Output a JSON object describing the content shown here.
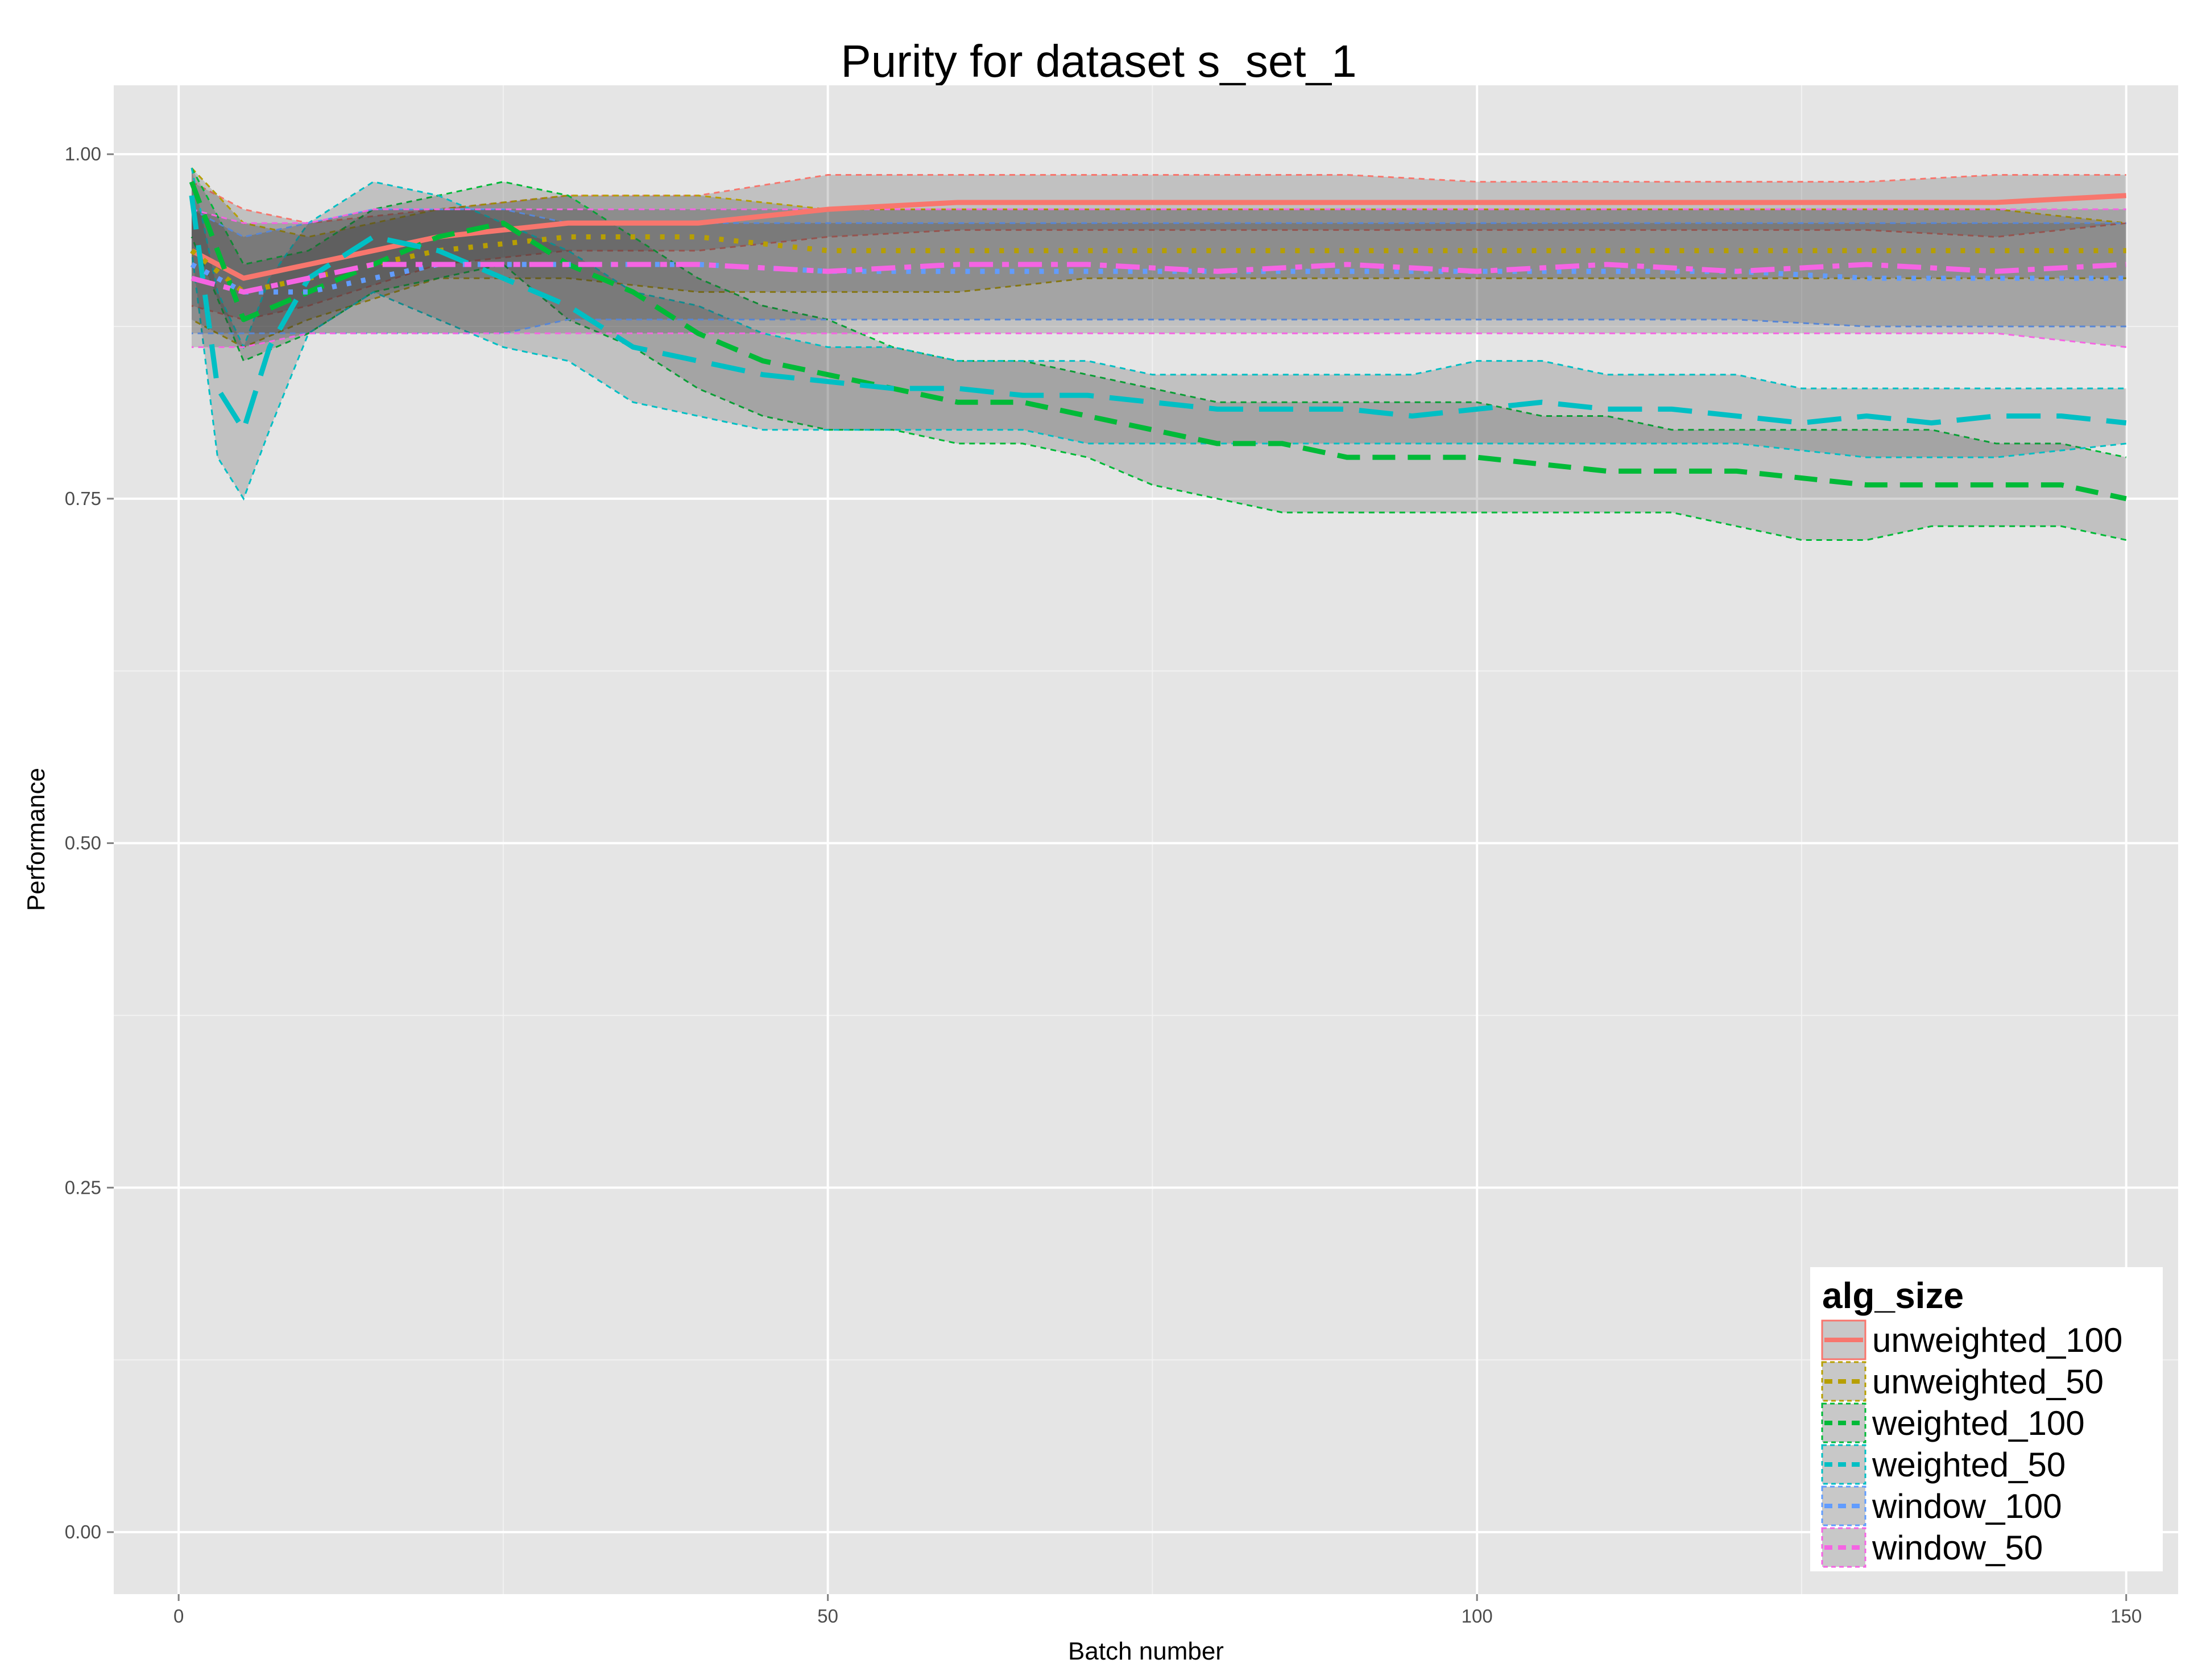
{
  "chart_data": {
    "type": "line",
    "title": "Purity for dataset s_set_1",
    "xlabel": "Batch number",
    "ylabel": "Performance",
    "xlim": [
      -5,
      154
    ],
    "ylim": [
      -0.045,
      1.05
    ],
    "x_ticks": [
      0,
      50,
      100,
      150
    ],
    "x_tick_labels": [
      "0",
      "50",
      "100",
      "150"
    ],
    "y_ticks": [
      0,
      0.25,
      0.5,
      0.75,
      1.0
    ],
    "y_tick_labels": [
      "0.00",
      "0.25",
      "0.50",
      "0.75",
      "1.00"
    ],
    "grid": true,
    "legend": {
      "title": "alg_size",
      "position": "bottom-right"
    },
    "series": [
      {
        "name": "unweighted_100",
        "color": "#F8766D",
        "dash": "solid",
        "x": [
          1,
          5,
          10,
          20,
          30,
          40,
          50,
          60,
          70,
          80,
          90,
          100,
          110,
          120,
          130,
          140,
          150
        ],
        "y": [
          0.93,
          0.91,
          0.92,
          0.94,
          0.95,
          0.95,
          0.96,
          0.965,
          0.965,
          0.965,
          0.965,
          0.965,
          0.965,
          0.965,
          0.965,
          0.965,
          0.97
        ],
        "lower": [
          0.89,
          0.88,
          0.89,
          0.92,
          0.93,
          0.93,
          0.94,
          0.945,
          0.945,
          0.945,
          0.945,
          0.945,
          0.945,
          0.945,
          0.945,
          0.94,
          0.95
        ],
        "upper": [
          0.98,
          0.96,
          0.95,
          0.96,
          0.97,
          0.97,
          0.985,
          0.985,
          0.985,
          0.985,
          0.985,
          0.98,
          0.98,
          0.98,
          0.98,
          0.985,
          0.985
        ]
      },
      {
        "name": "unweighted_50",
        "color": "#B79F00",
        "dash": "dotted",
        "x": [
          1,
          5,
          10,
          20,
          30,
          40,
          50,
          60,
          70,
          80,
          90,
          100,
          110,
          120,
          130,
          140,
          150
        ],
        "y": [
          0.93,
          0.9,
          0.91,
          0.93,
          0.94,
          0.94,
          0.93,
          0.93,
          0.93,
          0.93,
          0.93,
          0.93,
          0.93,
          0.93,
          0.93,
          0.93,
          0.93
        ],
        "lower": [
          0.88,
          0.86,
          0.88,
          0.91,
          0.91,
          0.9,
          0.9,
          0.9,
          0.91,
          0.91,
          0.91,
          0.91,
          0.91,
          0.91,
          0.91,
          0.91,
          0.91
        ],
        "upper": [
          0.99,
          0.95,
          0.94,
          0.96,
          0.97,
          0.97,
          0.96,
          0.96,
          0.96,
          0.96,
          0.96,
          0.96,
          0.96,
          0.96,
          0.96,
          0.96,
          0.95
        ]
      },
      {
        "name": "weighted_100",
        "color": "#00BA38",
        "dash": "dashed",
        "x": [
          1,
          5,
          10,
          15,
          20,
          25,
          30,
          35,
          40,
          45,
          50,
          55,
          60,
          65,
          70,
          75,
          80,
          85,
          90,
          95,
          100,
          105,
          110,
          115,
          120,
          125,
          130,
          135,
          140,
          145,
          150
        ],
        "y": [
          0.98,
          0.88,
          0.9,
          0.92,
          0.94,
          0.95,
          0.92,
          0.9,
          0.87,
          0.85,
          0.84,
          0.83,
          0.82,
          0.82,
          0.81,
          0.8,
          0.79,
          0.79,
          0.78,
          0.78,
          0.78,
          0.775,
          0.77,
          0.77,
          0.77,
          0.765,
          0.76,
          0.76,
          0.76,
          0.76,
          0.75
        ],
        "lower": [
          0.94,
          0.85,
          0.87,
          0.9,
          0.91,
          0.92,
          0.88,
          0.86,
          0.83,
          0.81,
          0.8,
          0.8,
          0.79,
          0.79,
          0.78,
          0.76,
          0.75,
          0.74,
          0.74,
          0.74,
          0.74,
          0.74,
          0.74,
          0.74,
          0.73,
          0.72,
          0.72,
          0.73,
          0.73,
          0.73,
          0.72
        ],
        "upper": [
          0.99,
          0.92,
          0.93,
          0.96,
          0.97,
          0.98,
          0.97,
          0.94,
          0.91,
          0.89,
          0.88,
          0.86,
          0.85,
          0.85,
          0.84,
          0.83,
          0.82,
          0.82,
          0.82,
          0.82,
          0.82,
          0.81,
          0.81,
          0.8,
          0.8,
          0.8,
          0.8,
          0.8,
          0.79,
          0.79,
          0.78
        ]
      },
      {
        "name": "weighted_50",
        "color": "#00BFC4",
        "dash": "longdash",
        "x": [
          1,
          3,
          5,
          7,
          10,
          15,
          20,
          25,
          30,
          35,
          40,
          45,
          50,
          55,
          60,
          65,
          70,
          75,
          80,
          85,
          90,
          95,
          100,
          105,
          110,
          115,
          120,
          125,
          130,
          135,
          140,
          145,
          150
        ],
        "y": [
          0.97,
          0.83,
          0.8,
          0.86,
          0.91,
          0.94,
          0.93,
          0.91,
          0.89,
          0.86,
          0.85,
          0.84,
          0.835,
          0.83,
          0.83,
          0.825,
          0.825,
          0.82,
          0.815,
          0.815,
          0.815,
          0.81,
          0.815,
          0.82,
          0.815,
          0.815,
          0.81,
          0.805,
          0.81,
          0.805,
          0.81,
          0.81,
          0.805
        ],
        "lower": [
          0.93,
          0.78,
          0.75,
          0.8,
          0.87,
          0.9,
          0.88,
          0.86,
          0.85,
          0.82,
          0.81,
          0.8,
          0.8,
          0.8,
          0.8,
          0.8,
          0.79,
          0.79,
          0.79,
          0.79,
          0.79,
          0.79,
          0.79,
          0.79,
          0.79,
          0.79,
          0.79,
          0.785,
          0.78,
          0.78,
          0.78,
          0.785,
          0.79
        ],
        "upper": [
          0.99,
          0.9,
          0.86,
          0.91,
          0.95,
          0.98,
          0.97,
          0.95,
          0.93,
          0.9,
          0.89,
          0.87,
          0.86,
          0.86,
          0.85,
          0.85,
          0.85,
          0.84,
          0.84,
          0.84,
          0.84,
          0.84,
          0.85,
          0.85,
          0.84,
          0.84,
          0.84,
          0.83,
          0.83,
          0.83,
          0.83,
          0.83,
          0.83
        ]
      },
      {
        "name": "window_100",
        "color": "#619CFF",
        "dash": "dotted",
        "x": [
          1,
          5,
          10,
          15,
          20,
          25,
          30,
          35,
          40,
          50,
          60,
          70,
          80,
          90,
          100,
          110,
          120,
          130,
          140,
          150
        ],
        "y": [
          0.92,
          0.9,
          0.9,
          0.91,
          0.92,
          0.92,
          0.92,
          0.92,
          0.92,
          0.915,
          0.915,
          0.915,
          0.915,
          0.915,
          0.915,
          0.915,
          0.915,
          0.91,
          0.91,
          0.91
        ],
        "lower": [
          0.87,
          0.87,
          0.87,
          0.87,
          0.87,
          0.87,
          0.88,
          0.88,
          0.88,
          0.88,
          0.88,
          0.88,
          0.88,
          0.88,
          0.88,
          0.88,
          0.88,
          0.875,
          0.875,
          0.875
        ],
        "upper": [
          0.96,
          0.94,
          0.95,
          0.96,
          0.96,
          0.96,
          0.95,
          0.95,
          0.95,
          0.95,
          0.95,
          0.95,
          0.95,
          0.95,
          0.95,
          0.95,
          0.95,
          0.95,
          0.95,
          0.95
        ]
      },
      {
        "name": "window_50",
        "color": "#F564E3",
        "dash": "twodash",
        "x": [
          1,
          5,
          10,
          15,
          20,
          25,
          30,
          35,
          40,
          50,
          60,
          70,
          80,
          90,
          100,
          110,
          120,
          130,
          140,
          150
        ],
        "y": [
          0.91,
          0.9,
          0.91,
          0.92,
          0.92,
          0.92,
          0.92,
          0.92,
          0.92,
          0.915,
          0.92,
          0.92,
          0.915,
          0.92,
          0.915,
          0.92,
          0.915,
          0.92,
          0.915,
          0.92
        ],
        "lower": [
          0.86,
          0.86,
          0.87,
          0.87,
          0.87,
          0.87,
          0.87,
          0.87,
          0.87,
          0.87,
          0.87,
          0.87,
          0.87,
          0.87,
          0.87,
          0.87,
          0.87,
          0.87,
          0.87,
          0.86
        ],
        "upper": [
          0.96,
          0.95,
          0.95,
          0.96,
          0.96,
          0.96,
          0.96,
          0.96,
          0.96,
          0.96,
          0.96,
          0.96,
          0.96,
          0.96,
          0.96,
          0.96,
          0.96,
          0.96,
          0.96,
          0.96
        ]
      }
    ]
  }
}
